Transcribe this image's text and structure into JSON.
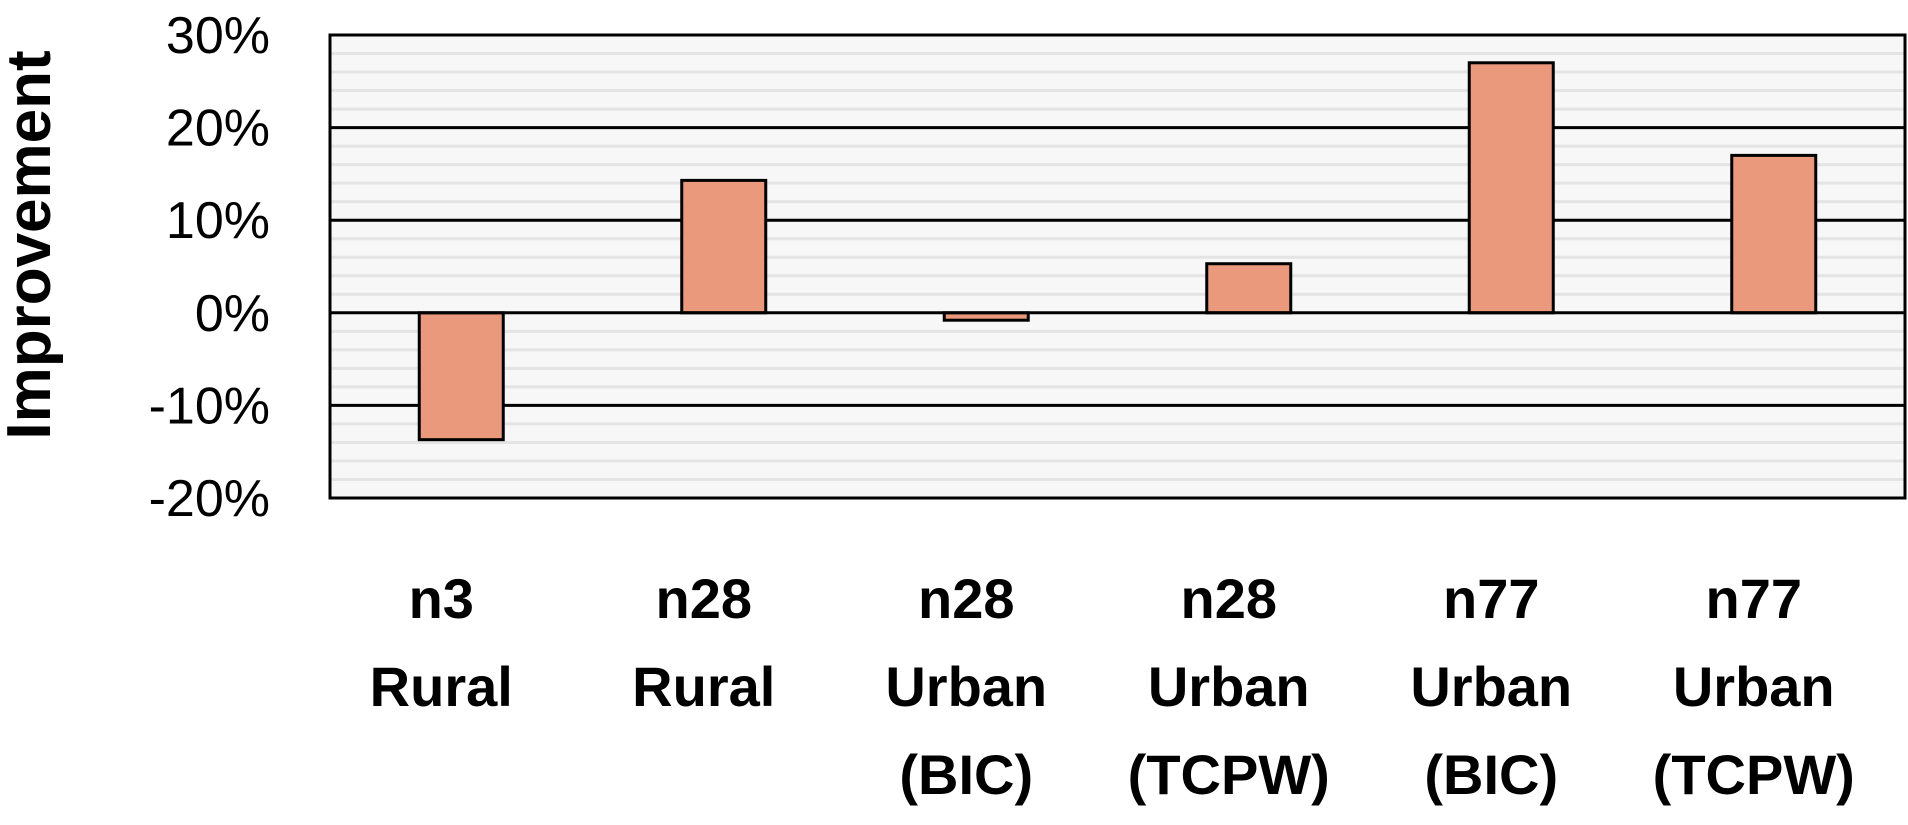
{
  "chart_data": {
    "type": "bar",
    "title": "",
    "xlabel": "",
    "ylabel": "Improvement",
    "categories": [
      [
        "n3",
        "Rural"
      ],
      [
        "n28",
        "Rural"
      ],
      [
        "n28",
        "Urban",
        "(BIC)"
      ],
      [
        "n28",
        "Urban",
        "(TCPW)"
      ],
      [
        "n77",
        "Urban",
        "(BIC)"
      ],
      [
        "n77",
        "Urban",
        "(TCPW)"
      ]
    ],
    "values": [
      -13.7,
      14.3,
      -0.8,
      5.3,
      27.0,
      17.0
    ],
    "ylim": [
      -20,
      30
    ],
    "yticks": [
      30,
      20,
      10,
      0,
      -10,
      -20
    ],
    "ytick_labels": [
      "30%",
      "20%",
      "10%",
      "0%",
      "-10%",
      "-20%"
    ],
    "grid": true,
    "legend": "none"
  },
  "colors": {
    "bar_fill": "#ea997c",
    "bar_stroke": "#000000",
    "plot_background": "#f7f7f7",
    "minor_grid": "#e4e4e4",
    "major_grid": "#000000"
  }
}
